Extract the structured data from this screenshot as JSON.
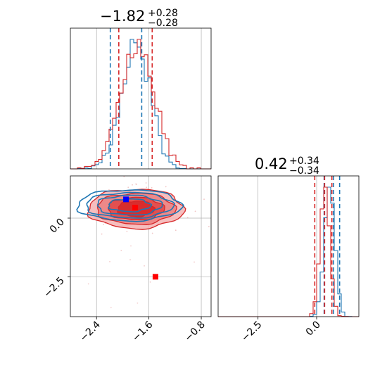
{
  "chart_data": {
    "type": "corner",
    "parameters": [
      {
        "title_value": "−1.82",
        "title_upper": "+0.28",
        "title_lower": "−0.28",
        "xlim": [
          -2.8,
          -0.65
        ]
      },
      {
        "title_value": "0.42",
        "title_upper": "+0.34",
        "title_lower": "−0.34",
        "xlim": [
          -4.2,
          1.8
        ]
      }
    ],
    "scatter_ylim": [
      -4.2,
      1.8
    ],
    "ticks": {
      "param1": [
        -2.4,
        -1.6,
        -0.8
      ],
      "param1_labels": [
        "−2.4",
        "−1.6",
        "−0.8"
      ],
      "param2": [
        -2.5,
        0.0
      ],
      "param2_labels": [
        "−2.5",
        "0.0"
      ]
    },
    "grid": true,
    "colors": {
      "blue": "#1f77b4",
      "red": "#d62728",
      "grid": "#b0b0b0"
    },
    "series": [
      {
        "color": "#1f77b4",
        "hist1": {
          "mean": -1.8,
          "sigma": 0.22,
          "quantiles": [
            -2.19,
            -1.71
          ]
        },
        "hist2": {
          "mean": 0.55,
          "sigma": 0.22,
          "quantiles": [
            0.32,
            0.72,
            0.98
          ]
        },
        "contour_center": [
          -1.9,
          0.55
        ],
        "marker": [
          -1.95,
          0.8
        ]
      },
      {
        "color": "#d62728",
        "hist1": {
          "mean": -1.78,
          "sigma": 0.26,
          "quantiles": [
            -2.06,
            -1.55
          ]
        },
        "hist2": {
          "mean": 0.35,
          "sigma": 0.2,
          "quantiles": [
            -0.08,
            0.34,
            0.65
          ]
        },
        "contour_center": [
          -1.8,
          0.4
        ],
        "marker": [
          -1.81,
          0.45
        ],
        "marker2": [
          -1.5,
          -2.5
        ]
      }
    ]
  }
}
